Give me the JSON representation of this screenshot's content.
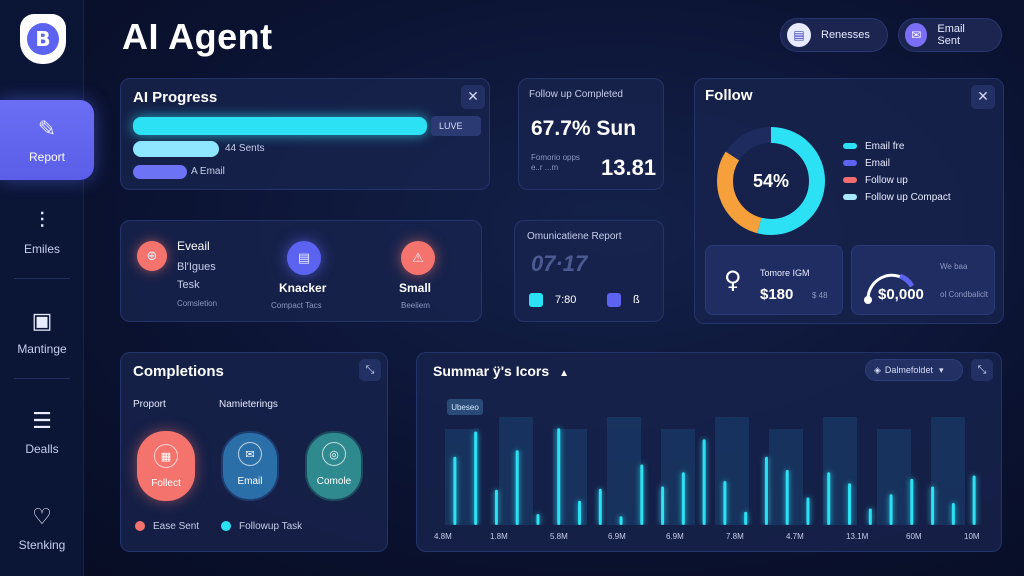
{
  "app": {
    "title": "AI Agent",
    "logo_letter": "B"
  },
  "sidebar": {
    "items": [
      {
        "label": "Report",
        "icon": "pen-icon"
      },
      {
        "label": "Emiles",
        "icon": "signal-icon"
      },
      {
        "label": "Mantinge",
        "icon": "document-icon"
      },
      {
        "label": "Dealls",
        "icon": "list-icon"
      },
      {
        "label": "Stenking",
        "icon": "heart-icon"
      }
    ]
  },
  "header": {
    "pills": [
      {
        "label": "Renesses",
        "icon": "inbox-icon"
      },
      {
        "label": "Email Sent",
        "icon": "mail-icon"
      }
    ]
  },
  "progress": {
    "title": "AI Progress",
    "badge": "LUVE",
    "rows": [
      {
        "label": "44 Sents"
      },
      {
        "label": "A Email"
      }
    ]
  },
  "followup_completed": {
    "title": "Follow up Completed",
    "value_main": "67.7% Sun",
    "note": "Fomorio opps e..r ...m",
    "value_big": "13.81"
  },
  "follow": {
    "title": "Follow",
    "donut_value": "54%",
    "donut_percent": 54,
    "legend": [
      {
        "label": "Email fre",
        "color": "#2de1f5"
      },
      {
        "label": "Email",
        "color": "#5b63f0"
      },
      {
        "label": "Follow up",
        "color": "#f26d6d"
      },
      {
        "label": "Follow up Compact",
        "color": "#a9e9ff"
      }
    ],
    "stat1_label": "Tomore IGM",
    "stat1_value": "$180",
    "stat1_sub": "$ 48",
    "stat2_label": "We baa",
    "stat2_value": "$0,000",
    "stat2_sub": "ol Condbaliclt"
  },
  "tasks": {
    "items": [
      {
        "title": "Eveail",
        "sub1": "Bl'Igues",
        "sub2": "Tesk",
        "sub3": "Comsletion"
      },
      {
        "title": "Knacker",
        "sub": "Compact Tacs"
      },
      {
        "title": "Small",
        "sub": "Beeliem"
      }
    ]
  },
  "report": {
    "title": "Omunicatiene Report",
    "big": "07·17",
    "item1": "7:80",
    "item2": "ß"
  },
  "completions": {
    "title": "Completions",
    "col1": "Proport",
    "col2": "Namieterings",
    "tiles": [
      {
        "label": "Follect",
        "color": "#f4736c"
      },
      {
        "label": "Email",
        "color": "#2b6fa8"
      },
      {
        "label": "Comole",
        "color": "#2f8a8f"
      }
    ],
    "legend": [
      {
        "label": "Ease Sent"
      },
      {
        "label": "Followup Task"
      }
    ]
  },
  "summary": {
    "title": "Summar ÿ's Icors",
    "dropdown": "Dalmefoldet",
    "tag": "Ubeseo",
    "x_labels": [
      "4.8M",
      "1.8M",
      "5.8M",
      "6.9M",
      "6.9M",
      "7.8M",
      "4.7M",
      "13.1M",
      "60M",
      "10M"
    ]
  },
  "chart_data": {
    "type": "bar",
    "categories": [
      "4.8M",
      "1.8M",
      "5.8M",
      "6.9M",
      "6.9M",
      "7.8M",
      "4.7M",
      "13.1M",
      "60M",
      "10M"
    ],
    "bars": [
      0.62,
      0.85,
      0.32,
      0.68,
      0.1,
      0.88,
      0.22,
      0.33,
      0.08,
      0.55,
      0.35,
      0.48,
      0.78,
      0.4,
      0.12,
      0.62,
      0.5,
      0.25,
      0.48,
      0.38,
      0.15,
      0.28,
      0.42,
      0.35,
      0.2,
      0.45
    ]
  }
}
